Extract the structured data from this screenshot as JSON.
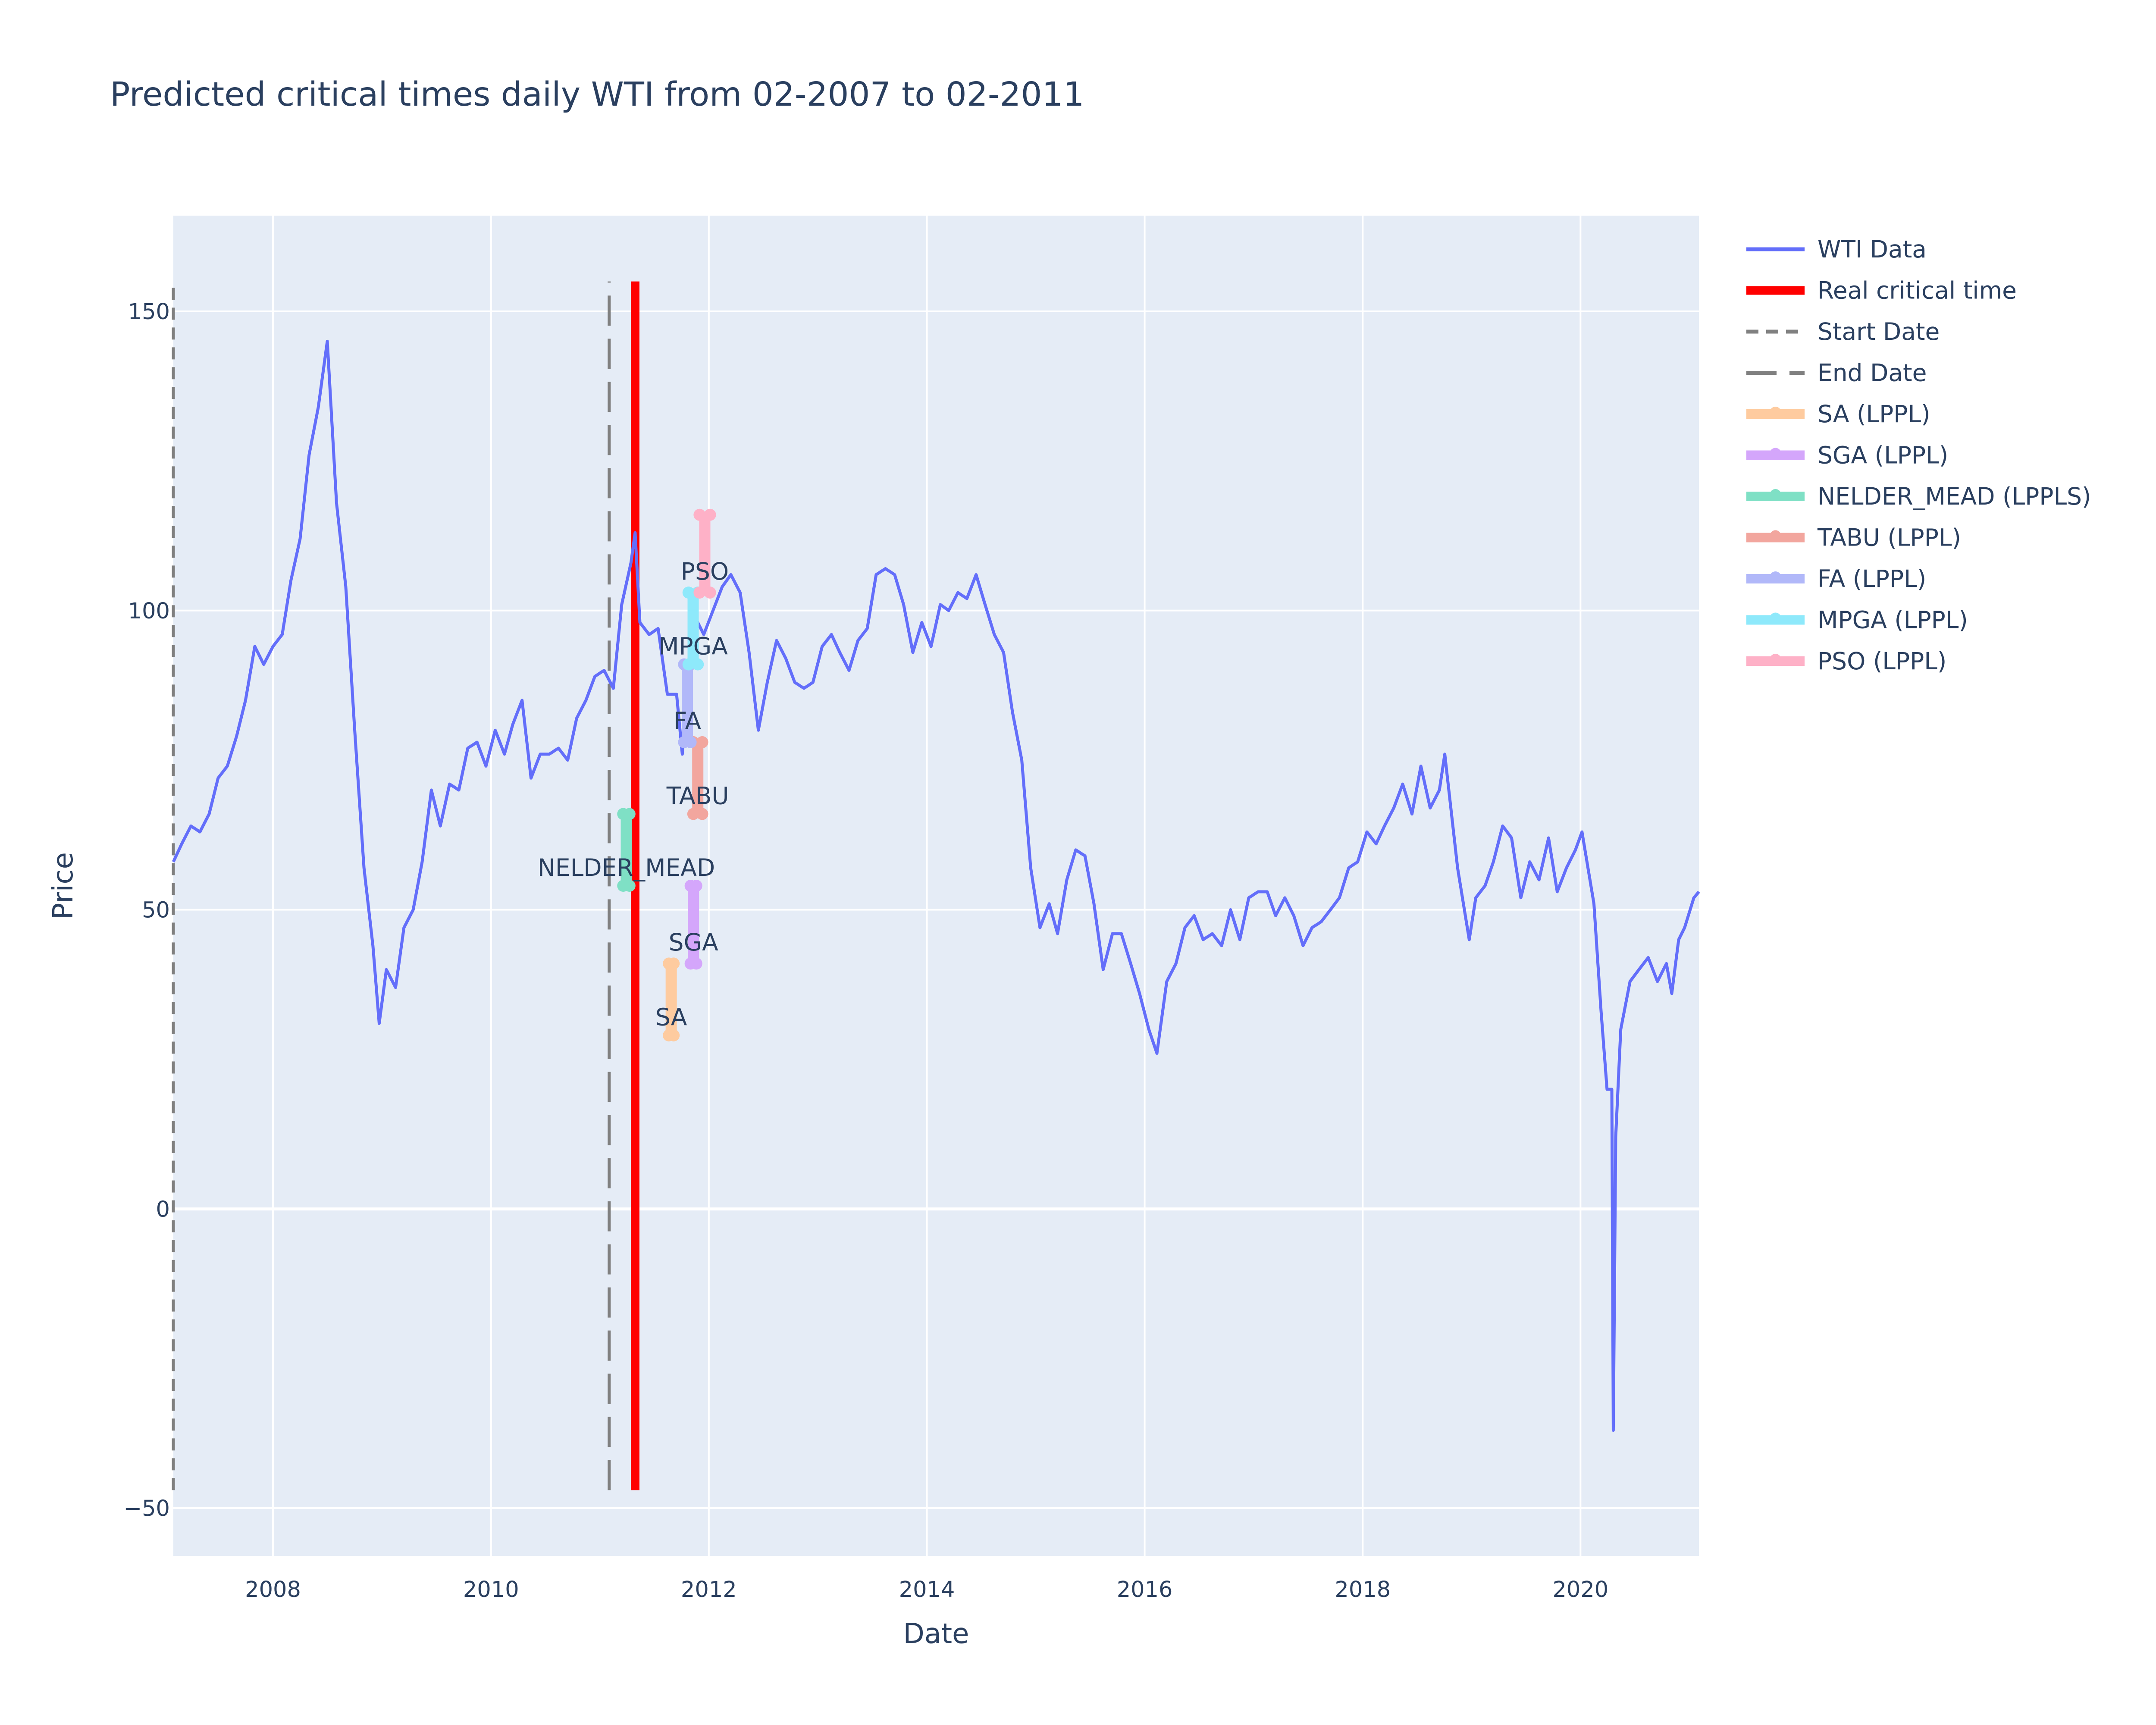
{
  "chart_data": {
    "type": "line",
    "title": "Predicted critical times daily WTI from 02-2007 to 02-2011",
    "xlabel": "Date",
    "ylabel": "Price",
    "xlim": [
      "2007-02-01",
      "2021-02-01"
    ],
    "ylim": [
      -58,
      166
    ],
    "x_ticks": [
      {
        "value": "2008-01-01",
        "label": "2008"
      },
      {
        "value": "2010-01-01",
        "label": "2010"
      },
      {
        "value": "2012-01-01",
        "label": "2012"
      },
      {
        "value": "2014-01-01",
        "label": "2014"
      },
      {
        "value": "2016-01-01",
        "label": "2016"
      },
      {
        "value": "2018-01-01",
        "label": "2018"
      },
      {
        "value": "2020-01-01",
        "label": "2020"
      }
    ],
    "y_ticks": [
      {
        "value": -50,
        "label": "−50"
      },
      {
        "value": 0,
        "label": "0"
      },
      {
        "value": 50,
        "label": "50"
      },
      {
        "value": 100,
        "label": "100"
      },
      {
        "value": 150,
        "label": "150"
      }
    ],
    "grid": true,
    "legend_position": "right",
    "colors": {
      "plot_bg": "#e5ecf6",
      "grid": "#ffffff",
      "wti": "#636efa",
      "critical": "#ff0000",
      "start_end": "#808080",
      "text": "#2a3f5f"
    },
    "wti_series": {
      "name": "WTI Data",
      "points": [
        [
          "2007-02-01",
          58
        ],
        [
          "2007-03-01",
          61
        ],
        [
          "2007-04-01",
          64
        ],
        [
          "2007-05-01",
          63
        ],
        [
          "2007-06-01",
          66
        ],
        [
          "2007-07-01",
          72
        ],
        [
          "2007-08-01",
          74
        ],
        [
          "2007-09-01",
          79
        ],
        [
          "2007-10-01",
          85
        ],
        [
          "2007-11-01",
          94
        ],
        [
          "2007-12-01",
          91
        ],
        [
          "2008-01-01",
          94
        ],
        [
          "2008-02-01",
          96
        ],
        [
          "2008-03-01",
          105
        ],
        [
          "2008-04-01",
          112
        ],
        [
          "2008-05-01",
          126
        ],
        [
          "2008-06-01",
          134
        ],
        [
          "2008-07-01",
          145
        ],
        [
          "2008-08-01",
          118
        ],
        [
          "2008-09-01",
          104
        ],
        [
          "2008-10-01",
          80
        ],
        [
          "2008-11-01",
          57
        ],
        [
          "2008-12-01",
          44
        ],
        [
          "2008-12-22",
          31
        ],
        [
          "2009-01-15",
          40
        ],
        [
          "2009-02-15",
          37
        ],
        [
          "2009-03-15",
          47
        ],
        [
          "2009-04-15",
          50
        ],
        [
          "2009-05-15",
          58
        ],
        [
          "2009-06-15",
          70
        ],
        [
          "2009-07-15",
          64
        ],
        [
          "2009-08-15",
          71
        ],
        [
          "2009-09-15",
          70
        ],
        [
          "2009-10-15",
          77
        ],
        [
          "2009-11-15",
          78
        ],
        [
          "2009-12-15",
          74
        ],
        [
          "2010-01-15",
          80
        ],
        [
          "2010-02-15",
          76
        ],
        [
          "2010-03-15",
          81
        ],
        [
          "2010-04-15",
          85
        ],
        [
          "2010-05-15",
          72
        ],
        [
          "2010-06-15",
          76
        ],
        [
          "2010-07-15",
          76
        ],
        [
          "2010-08-15",
          77
        ],
        [
          "2010-09-15",
          75
        ],
        [
          "2010-10-15",
          82
        ],
        [
          "2010-11-15",
          85
        ],
        [
          "2010-12-15",
          89
        ],
        [
          "2011-01-15",
          90
        ],
        [
          "2011-02-15",
          87
        ],
        [
          "2011-03-15",
          101
        ],
        [
          "2011-04-15",
          108
        ],
        [
          "2011-04-29",
          113
        ],
        [
          "2011-05-15",
          98
        ],
        [
          "2011-06-15",
          96
        ],
        [
          "2011-07-15",
          97
        ],
        [
          "2011-08-15",
          86
        ],
        [
          "2011-09-15",
          86
        ],
        [
          "2011-10-04",
          76
        ],
        [
          "2011-11-15",
          99
        ],
        [
          "2011-12-15",
          96
        ],
        [
          "2012-01-15",
          100
        ],
        [
          "2012-02-15",
          104
        ],
        [
          "2012-03-15",
          106
        ],
        [
          "2012-04-15",
          103
        ],
        [
          "2012-05-15",
          93
        ],
        [
          "2012-06-15",
          80
        ],
        [
          "2012-07-15",
          88
        ],
        [
          "2012-08-15",
          95
        ],
        [
          "2012-09-15",
          92
        ],
        [
          "2012-10-15",
          88
        ],
        [
          "2012-11-15",
          87
        ],
        [
          "2012-12-15",
          88
        ],
        [
          "2013-01-15",
          94
        ],
        [
          "2013-02-15",
          96
        ],
        [
          "2013-03-15",
          93
        ],
        [
          "2013-04-15",
          90
        ],
        [
          "2013-05-15",
          95
        ],
        [
          "2013-06-15",
          97
        ],
        [
          "2013-07-15",
          106
        ],
        [
          "2013-08-15",
          107
        ],
        [
          "2013-09-15",
          106
        ],
        [
          "2013-10-15",
          101
        ],
        [
          "2013-11-15",
          93
        ],
        [
          "2013-12-15",
          98
        ],
        [
          "2014-01-15",
          94
        ],
        [
          "2014-02-15",
          101
        ],
        [
          "2014-03-15",
          100
        ],
        [
          "2014-04-15",
          103
        ],
        [
          "2014-05-15",
          102
        ],
        [
          "2014-06-15",
          106
        ],
        [
          "2014-07-15",
          101
        ],
        [
          "2014-08-15",
          96
        ],
        [
          "2014-09-15",
          93
        ],
        [
          "2014-10-15",
          83
        ],
        [
          "2014-11-15",
          75
        ],
        [
          "2014-12-15",
          57
        ],
        [
          "2015-01-15",
          47
        ],
        [
          "2015-02-15",
          51
        ],
        [
          "2015-03-15",
          46
        ],
        [
          "2015-04-15",
          55
        ],
        [
          "2015-05-15",
          60
        ],
        [
          "2015-06-15",
          59
        ],
        [
          "2015-07-15",
          51
        ],
        [
          "2015-08-15",
          40
        ],
        [
          "2015-09-15",
          46
        ],
        [
          "2015-10-15",
          46
        ],
        [
          "2015-11-15",
          41
        ],
        [
          "2015-12-15",
          36
        ],
        [
          "2016-01-15",
          30
        ],
        [
          "2016-02-11",
          26
        ],
        [
          "2016-03-15",
          38
        ],
        [
          "2016-04-15",
          41
        ],
        [
          "2016-05-15",
          47
        ],
        [
          "2016-06-15",
          49
        ],
        [
          "2016-07-15",
          45
        ],
        [
          "2016-08-15",
          46
        ],
        [
          "2016-09-15",
          44
        ],
        [
          "2016-10-15",
          50
        ],
        [
          "2016-11-15",
          45
        ],
        [
          "2016-12-15",
          52
        ],
        [
          "2017-01-15",
          53
        ],
        [
          "2017-02-15",
          53
        ],
        [
          "2017-03-15",
          49
        ],
        [
          "2017-04-15",
          52
        ],
        [
          "2017-05-15",
          49
        ],
        [
          "2017-06-15",
          44
        ],
        [
          "2017-07-15",
          47
        ],
        [
          "2017-08-15",
          48
        ],
        [
          "2017-09-15",
          50
        ],
        [
          "2017-10-15",
          52
        ],
        [
          "2017-11-15",
          57
        ],
        [
          "2017-12-15",
          58
        ],
        [
          "2018-01-15",
          63
        ],
        [
          "2018-02-15",
          61
        ],
        [
          "2018-03-15",
          64
        ],
        [
          "2018-04-15",
          67
        ],
        [
          "2018-05-15",
          71
        ],
        [
          "2018-06-15",
          66
        ],
        [
          "2018-07-15",
          74
        ],
        [
          "2018-08-15",
          67
        ],
        [
          "2018-09-15",
          70
        ],
        [
          "2018-10-03",
          76
        ],
        [
          "2018-11-15",
          57
        ],
        [
          "2018-12-24",
          45
        ],
        [
          "2019-01-15",
          52
        ],
        [
          "2019-02-15",
          54
        ],
        [
          "2019-03-15",
          58
        ],
        [
          "2019-04-15",
          64
        ],
        [
          "2019-05-15",
          62
        ],
        [
          "2019-06-15",
          52
        ],
        [
          "2019-07-15",
          58
        ],
        [
          "2019-08-15",
          55
        ],
        [
          "2019-09-16",
          62
        ],
        [
          "2019-10-15",
          53
        ],
        [
          "2019-11-15",
          57
        ],
        [
          "2019-12-15",
          60
        ],
        [
          "2020-01-06",
          63
        ],
        [
          "2020-02-15",
          51
        ],
        [
          "2020-03-10",
          33
        ],
        [
          "2020-03-30",
          20
        ],
        [
          "2020-04-15",
          20
        ],
        [
          "2020-04-20",
          -37
        ],
        [
          "2020-04-28",
          12
        ],
        [
          "2020-05-15",
          30
        ],
        [
          "2020-06-15",
          38
        ],
        [
          "2020-07-15",
          40
        ],
        [
          "2020-08-15",
          42
        ],
        [
          "2020-09-15",
          38
        ],
        [
          "2020-10-15",
          41
        ],
        [
          "2020-11-02",
          36
        ],
        [
          "2020-11-25",
          45
        ],
        [
          "2020-12-15",
          47
        ],
        [
          "2021-01-15",
          52
        ],
        [
          "2021-02-01",
          53
        ]
      ]
    },
    "real_critical_time": {
      "name": "Real critical time",
      "date": "2011-04-29",
      "y_range": [
        -47,
        155
      ]
    },
    "start_date": {
      "name": "Start Date",
      "date": "2007-02-01",
      "y_range": [
        -47,
        155
      ]
    },
    "end_date": {
      "name": "End Date",
      "date": "2011-02-01",
      "y_range": [
        -47,
        155
      ]
    },
    "predictions": [
      {
        "name": "SA (LPPL)",
        "label": "SA",
        "color": "#fecb9f",
        "dates": [
          "2011-08-20",
          "2011-09-05"
        ],
        "y_range": [
          29,
          41
        ]
      },
      {
        "name": "SGA (LPPL)",
        "label": "SGA",
        "color": "#d4a6fb",
        "dates": [
          "2011-11-01",
          "2011-11-20"
        ],
        "y_range": [
          41,
          54
        ]
      },
      {
        "name": "NELDER_MEAD (LPPLS)",
        "label": "NELDER_MEAD",
        "color": "#7fe0c5",
        "dates": [
          "2011-03-20",
          "2011-04-10"
        ],
        "y_range": [
          54,
          66
        ]
      },
      {
        "name": "TABU (LPPL)",
        "label": "TABU",
        "color": "#f2a69e",
        "dates": [
          "2011-11-10",
          "2011-12-10"
        ],
        "y_range": [
          66,
          78
        ]
      },
      {
        "name": "FA (LPPL)",
        "label": "FA",
        "color": "#b1b8f9",
        "dates": [
          "2011-10-10",
          "2011-11-01"
        ],
        "y_range": [
          78,
          91
        ]
      },
      {
        "name": "MPGA (LPPL)",
        "label": "MPGA",
        "color": "#8ee9fb",
        "dates": [
          "2011-10-25",
          "2011-11-25"
        ],
        "y_range": [
          91,
          103
        ]
      },
      {
        "name": "PSO (LPPL)",
        "label": "PSO",
        "color": "#feb1c7",
        "dates": [
          "2011-12-01",
          "2012-01-05"
        ],
        "y_range": [
          103,
          116
        ]
      }
    ],
    "legend": [
      "WTI Data",
      "Real critical time",
      "Start Date",
      "End Date",
      "SA (LPPL)",
      "SGA (LPPL)",
      "NELDER_MEAD (LPPLS)",
      "TABU (LPPL)",
      "FA (LPPL)",
      "MPGA (LPPL)",
      "PSO (LPPL)"
    ]
  }
}
